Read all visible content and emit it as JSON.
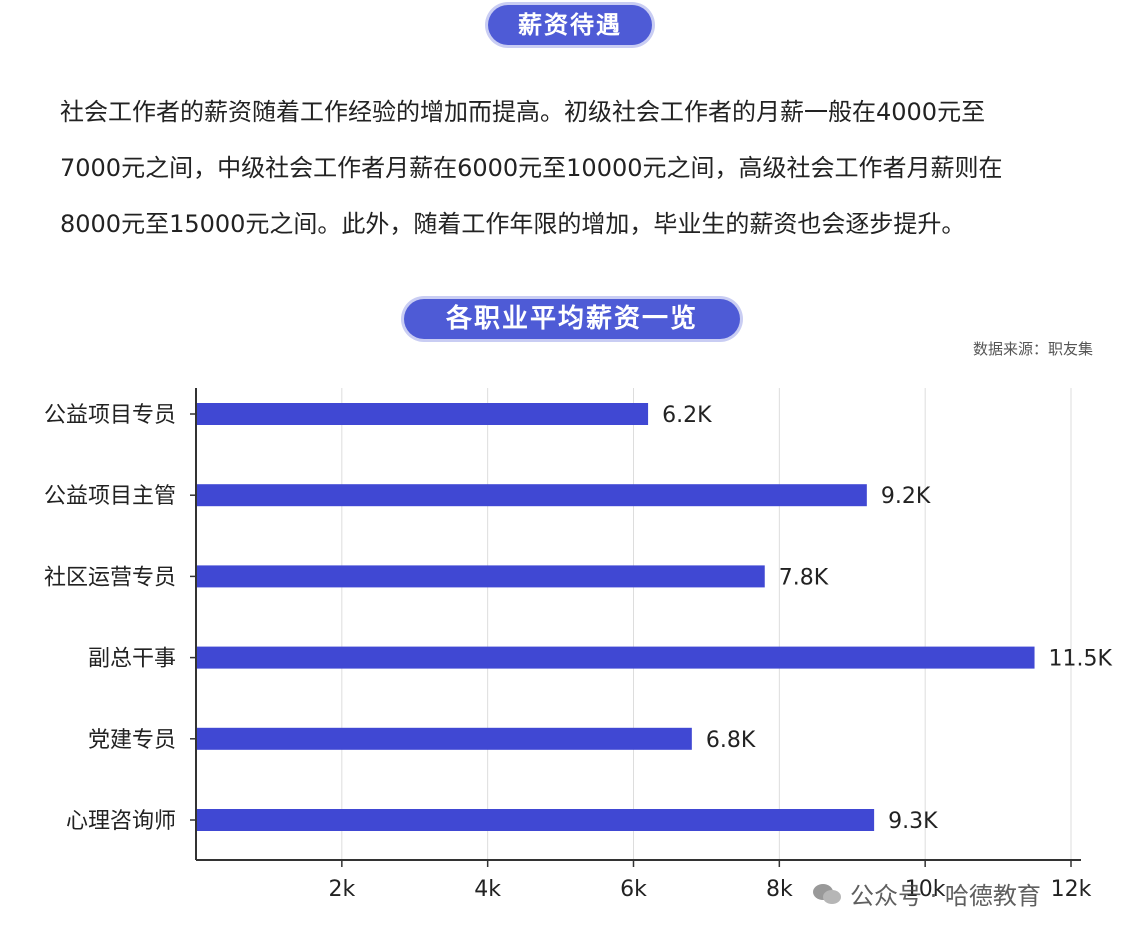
{
  "section_title": "薪资待遇",
  "paragraph_lines": [
    "社会工作者的薪资随着工作经验的增加而提高。初级社会工作者的月薪一般在4000元至",
    "7000元之间，中级社会工作者月薪在6000元至10000元之间，高级社会工作者月薪则在",
    "8000元至15000元之间。此外，随着工作年限的增加，毕业生的薪资也会逐步提升。"
  ],
  "source_note": "数据来源：职友集",
  "watermark": "公众号 · 哈德教育",
  "colors": {
    "accent": "#4e5bd6",
    "bar": "#4048d3",
    "grid": "#dddddd"
  },
  "chart_data": {
    "type": "bar",
    "orientation": "horizontal",
    "title": "各职业平均薪资一览",
    "categories": [
      "公益项目专员",
      "公益项目主管",
      "社区运营专员",
      "副总干事",
      "党建专员",
      "心理咨询师"
    ],
    "values": [
      6.2,
      9.2,
      7.8,
      11.5,
      6.8,
      9.3
    ],
    "value_labels": [
      "6.2K",
      "9.2K",
      "7.8K",
      "11.5K",
      "6.8K",
      "9.3K"
    ],
    "x_ticks": [
      2,
      4,
      6,
      8,
      10,
      12
    ],
    "x_tick_labels": [
      "2k",
      "4k",
      "6k",
      "8k",
      "10k",
      "12k"
    ],
    "xlim": [
      0,
      12
    ],
    "grid": true
  }
}
